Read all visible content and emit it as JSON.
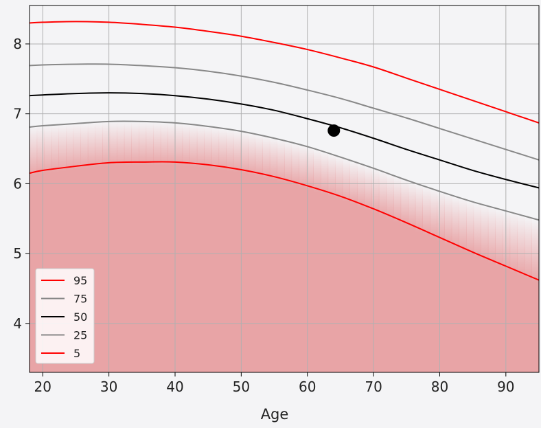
{
  "chart_data": {
    "type": "line",
    "title": "",
    "xlabel": "Age",
    "ylabel": "",
    "xlim": [
      18,
      95
    ],
    "ylim": [
      3.3,
      8.55
    ],
    "xticks": [
      20,
      30,
      40,
      50,
      60,
      70,
      80,
      90
    ],
    "yticks": [
      4,
      5,
      6,
      7,
      8
    ],
    "grid": true,
    "legend_position": "lower-left",
    "x": [
      18,
      20,
      25,
      30,
      35,
      40,
      45,
      50,
      55,
      60,
      65,
      70,
      75,
      80,
      85,
      90,
      95
    ],
    "series": [
      {
        "name": "95",
        "color": "#ff0000",
        "values": [
          8.3,
          8.31,
          8.32,
          8.31,
          8.28,
          8.24,
          8.18,
          8.11,
          8.02,
          7.92,
          7.8,
          7.67,
          7.51,
          7.35,
          7.19,
          7.03,
          6.87
        ]
      },
      {
        "name": "75",
        "color": "#888888",
        "values": [
          7.69,
          7.7,
          7.71,
          7.71,
          7.69,
          7.66,
          7.61,
          7.54,
          7.45,
          7.34,
          7.22,
          7.08,
          6.94,
          6.79,
          6.64,
          6.49,
          6.34
        ]
      },
      {
        "name": "50",
        "color": "#000000",
        "values": [
          7.26,
          7.27,
          7.29,
          7.3,
          7.29,
          7.26,
          7.21,
          7.14,
          7.05,
          6.93,
          6.8,
          6.65,
          6.49,
          6.34,
          6.19,
          6.06,
          5.94
        ]
      },
      {
        "name": "25",
        "color": "#888888",
        "values": [
          6.81,
          6.83,
          6.86,
          6.89,
          6.89,
          6.87,
          6.82,
          6.75,
          6.65,
          6.53,
          6.38,
          6.22,
          6.05,
          5.89,
          5.74,
          5.61,
          5.48
        ]
      },
      {
        "name": "5",
        "color": "#ff0000",
        "values": [
          6.15,
          6.19,
          6.25,
          6.3,
          6.31,
          6.31,
          6.27,
          6.2,
          6.1,
          5.97,
          5.82,
          5.64,
          5.44,
          5.23,
          5.02,
          4.82,
          4.62
        ]
      }
    ],
    "point": {
      "x": 64,
      "y": 6.76,
      "color": "#000000"
    },
    "shaded_region": {
      "color": "#e8a4a6",
      "below_series": "5",
      "fade_to_series": "25"
    }
  }
}
